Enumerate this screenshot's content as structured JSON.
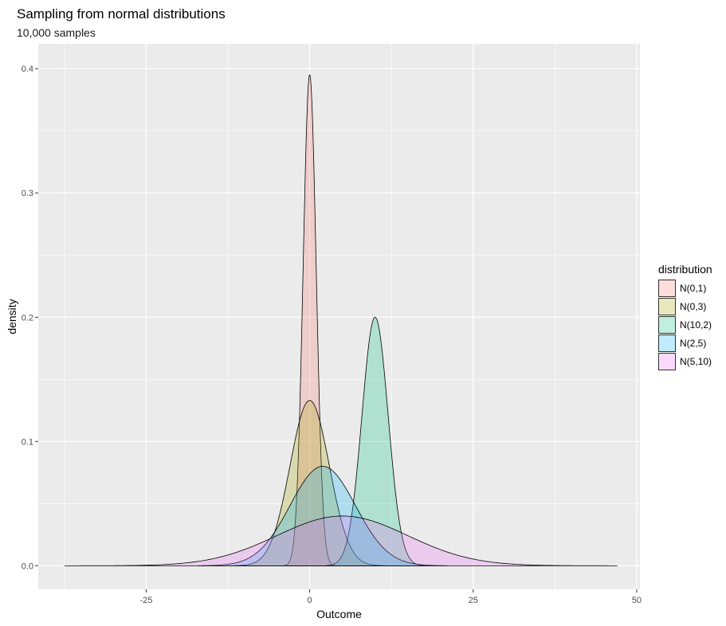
{
  "chart_data": {
    "type": "area",
    "title": "Sampling from normal distributions",
    "subtitle": "10,000 samples",
    "xlabel": "Outcome",
    "ylabel": "density",
    "xlim": [
      -41.5,
      50.5
    ],
    "ylim": [
      -0.019,
      0.42
    ],
    "x_ticks": [
      -25,
      0,
      25,
      50
    ],
    "x_tick_labels": [
      "-25",
      "0",
      "25",
      "50"
    ],
    "y_ticks": [
      0.0,
      0.1,
      0.2,
      0.3,
      0.4
    ],
    "y_tick_labels": [
      "0.0",
      "0.1",
      "0.2",
      "0.3",
      "0.4"
    ],
    "grid": true,
    "legend": {
      "title": "distribution",
      "position": "right"
    },
    "series": [
      {
        "name": "N(0,1)",
        "mean": 0,
        "sd": 1,
        "x_range": [
          -3.8,
          3.8
        ],
        "peak_density": 0.395,
        "fill": "#F8766D"
      },
      {
        "name": "N(0,3)",
        "mean": 0,
        "sd": 3,
        "x_range": [
          -11.5,
          11.5
        ],
        "peak_density": 0.133,
        "fill": "#A3A500"
      },
      {
        "name": "N(10,2)",
        "mean": 10,
        "sd": 2,
        "x_range": [
          2.5,
          17.5
        ],
        "peak_density": 0.2,
        "fill": "#00BF7D"
      },
      {
        "name": "N(2,5)",
        "mean": 2,
        "sd": 5,
        "x_range": [
          -17,
          21
        ],
        "peak_density": 0.08,
        "fill": "#00B0F6"
      },
      {
        "name": "N(5,10)",
        "mean": 5,
        "sd": 10,
        "x_range": [
          -37.5,
          47
        ],
        "peak_density": 0.04,
        "fill": "#E76BF3"
      }
    ]
  }
}
